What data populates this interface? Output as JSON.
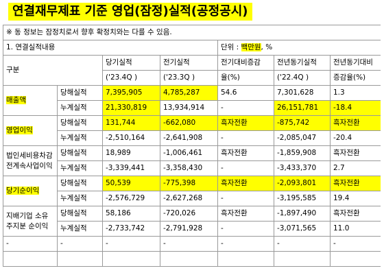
{
  "title": "연결재무제표 기준 영업(잠정)실적(공정공시)",
  "notice": "※ 동 정보는 잠정치로서 향후 확정치와는 다를 수 있음.",
  "section": {
    "label": "1. 연결실적내용",
    "unit_label": "단위 :",
    "unit_value": "백만원",
    "unit_suffix": ", %"
  },
  "header": {
    "category": "구분",
    "current": "당기실적",
    "current_period": "('23.4Q )",
    "previous": "전기실적",
    "previous_period": "('23.3Q )",
    "qoq_1": "전기대비증감",
    "qoq_2": "율(%)",
    "yoy_base": "전년동기실적",
    "yoy_base_period": "('22.4Q )",
    "yoy_1": "전년동기대비",
    "yoy_2": "증감율(%)"
  },
  "rows": [
    {
      "category": "매출액",
      "period": {
        "sub": "당해실적",
        "current": "7,395,905",
        "previous": "4,785,287",
        "qoq": "54.6",
        "yoy_base": "7,301,628",
        "yoy": "1.3"
      },
      "cumulative": {
        "sub": "누계실적",
        "current": "21,330,819",
        "previous": "13,934,914",
        "qoq": "-",
        "yoy_base": "26,151,781",
        "yoy": "-18.4"
      }
    },
    {
      "category": "영업이익",
      "period": {
        "sub": "당해실적",
        "current": "131,744",
        "previous": "-662,080",
        "qoq": "흑자전환",
        "yoy_base": "-875,742",
        "yoy": "흑자전환"
      },
      "cumulative": {
        "sub": "누계실적",
        "current": "-2,510,164",
        "previous": "-2,641,908",
        "qoq": "-",
        "yoy_base": "-2,085,047",
        "yoy": "-20.4"
      }
    },
    {
      "category": "법인세비용차감전계속사업이익",
      "period": {
        "sub": "당해실적",
        "current": "18,989",
        "previous": "-1,006,461",
        "qoq": "흑자전환",
        "yoy_base": "-1,859,908",
        "yoy": "흑자전환"
      },
      "cumulative": {
        "sub": "누계실적",
        "current": "-3,339,441",
        "previous": "-3,358,430",
        "qoq": "-",
        "yoy_base": "-3,433,370",
        "yoy": "2.7"
      }
    },
    {
      "category": "당기순이익",
      "period": {
        "sub": "당해실적",
        "current": "50,539",
        "previous": "-775,398",
        "qoq": "흑자전환",
        "yoy_base": "-2,093,801",
        "yoy": "흑자전환"
      },
      "cumulative": {
        "sub": "누계실적",
        "current": "-2,576,729",
        "previous": "-2,627,268",
        "qoq": "-",
        "yoy_base": "-3,195,585",
        "yoy": "19.4"
      }
    },
    {
      "category": "지배기업 소유주지분 순이익",
      "period": {
        "sub": "당해실적",
        "current": "58,186",
        "previous": "-720,026",
        "qoq": "흑자전환",
        "yoy_base": "-1,897,490",
        "yoy": "흑자전환"
      },
      "cumulative": {
        "sub": "누계실적",
        "current": "-2,733,742",
        "previous": "-2,791,928",
        "qoq": "-",
        "yoy_base": "-3,071,565",
        "yoy": "11.0"
      }
    }
  ],
  "dash_row": [
    "-",
    "-",
    "-",
    "-",
    "-",
    "-",
    "-"
  ]
}
